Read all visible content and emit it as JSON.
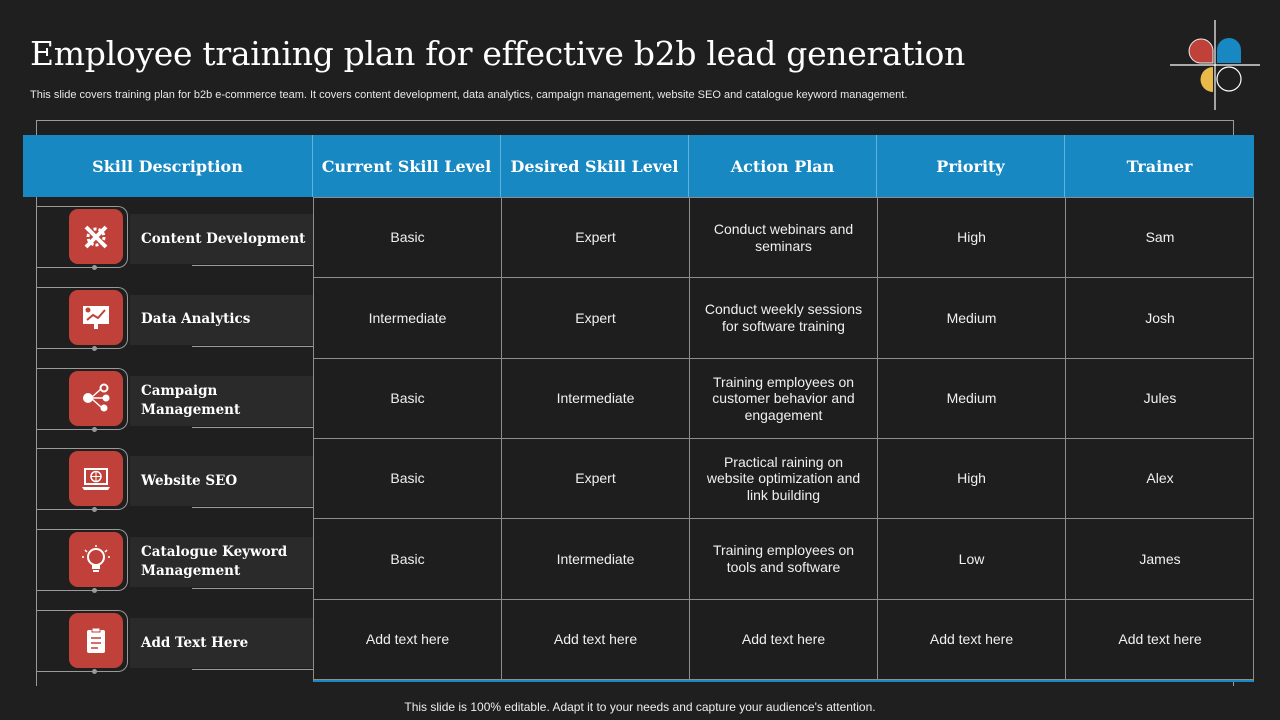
{
  "title": "Employee training plan for effective b2b lead generation",
  "subtitle": "This slide covers training plan for b2b e-commerce team. It covers content development, data analytics, campaign management, website SEO and catalogue keyword management.",
  "headers": [
    "Skill Description",
    "Current Skill Level",
    "Desired Skill Level",
    "Action Plan",
    "Priority",
    "Trainer"
  ],
  "rows": [
    {
      "skill": "Content Development",
      "icon": "tools-icon",
      "current": "Basic",
      "desired": "Expert",
      "action": "Conduct webinars and seminars",
      "priority": "High",
      "trainer": "Sam"
    },
    {
      "skill": "Data Analytics",
      "icon": "analytics-presentation-icon",
      "current": "Intermediate",
      "desired": "Expert",
      "action": "Conduct weekly sessions for software training",
      "priority": "Medium",
      "trainer": "Josh"
    },
    {
      "skill": "Campaign Management",
      "icon": "share-network-icon",
      "current": "Basic",
      "desired": "Intermediate",
      "action": "Training employees on customer behavior and engagement",
      "priority": "Medium",
      "trainer": "Jules"
    },
    {
      "skill": "Website SEO",
      "icon": "laptop-globe-icon",
      "current": "Basic",
      "desired": "Expert",
      "action": "Practical raining on website optimization and link building",
      "priority": "High",
      "trainer": "Alex"
    },
    {
      "skill": "Catalogue Keyword Management",
      "icon": "lightbulb-icon",
      "current": "Basic",
      "desired": "Intermediate",
      "action": "Training employees on tools and software",
      "priority": "Low",
      "trainer": "James"
    },
    {
      "skill": "Add Text Here",
      "icon": "clipboard-icon",
      "current": "Add text here",
      "desired": "Add text here",
      "action": "Add text here",
      "priority": "Add text here",
      "trainer": "Add text here"
    }
  ],
  "footer": "This slide is 100% editable. Adapt it to your needs and capture your audience's attention.",
  "colors": {
    "header": "#1788c2",
    "icon_bg": "#c0413a",
    "logo": [
      "#c0413a",
      "#1788c2",
      "#e9b949"
    ]
  }
}
